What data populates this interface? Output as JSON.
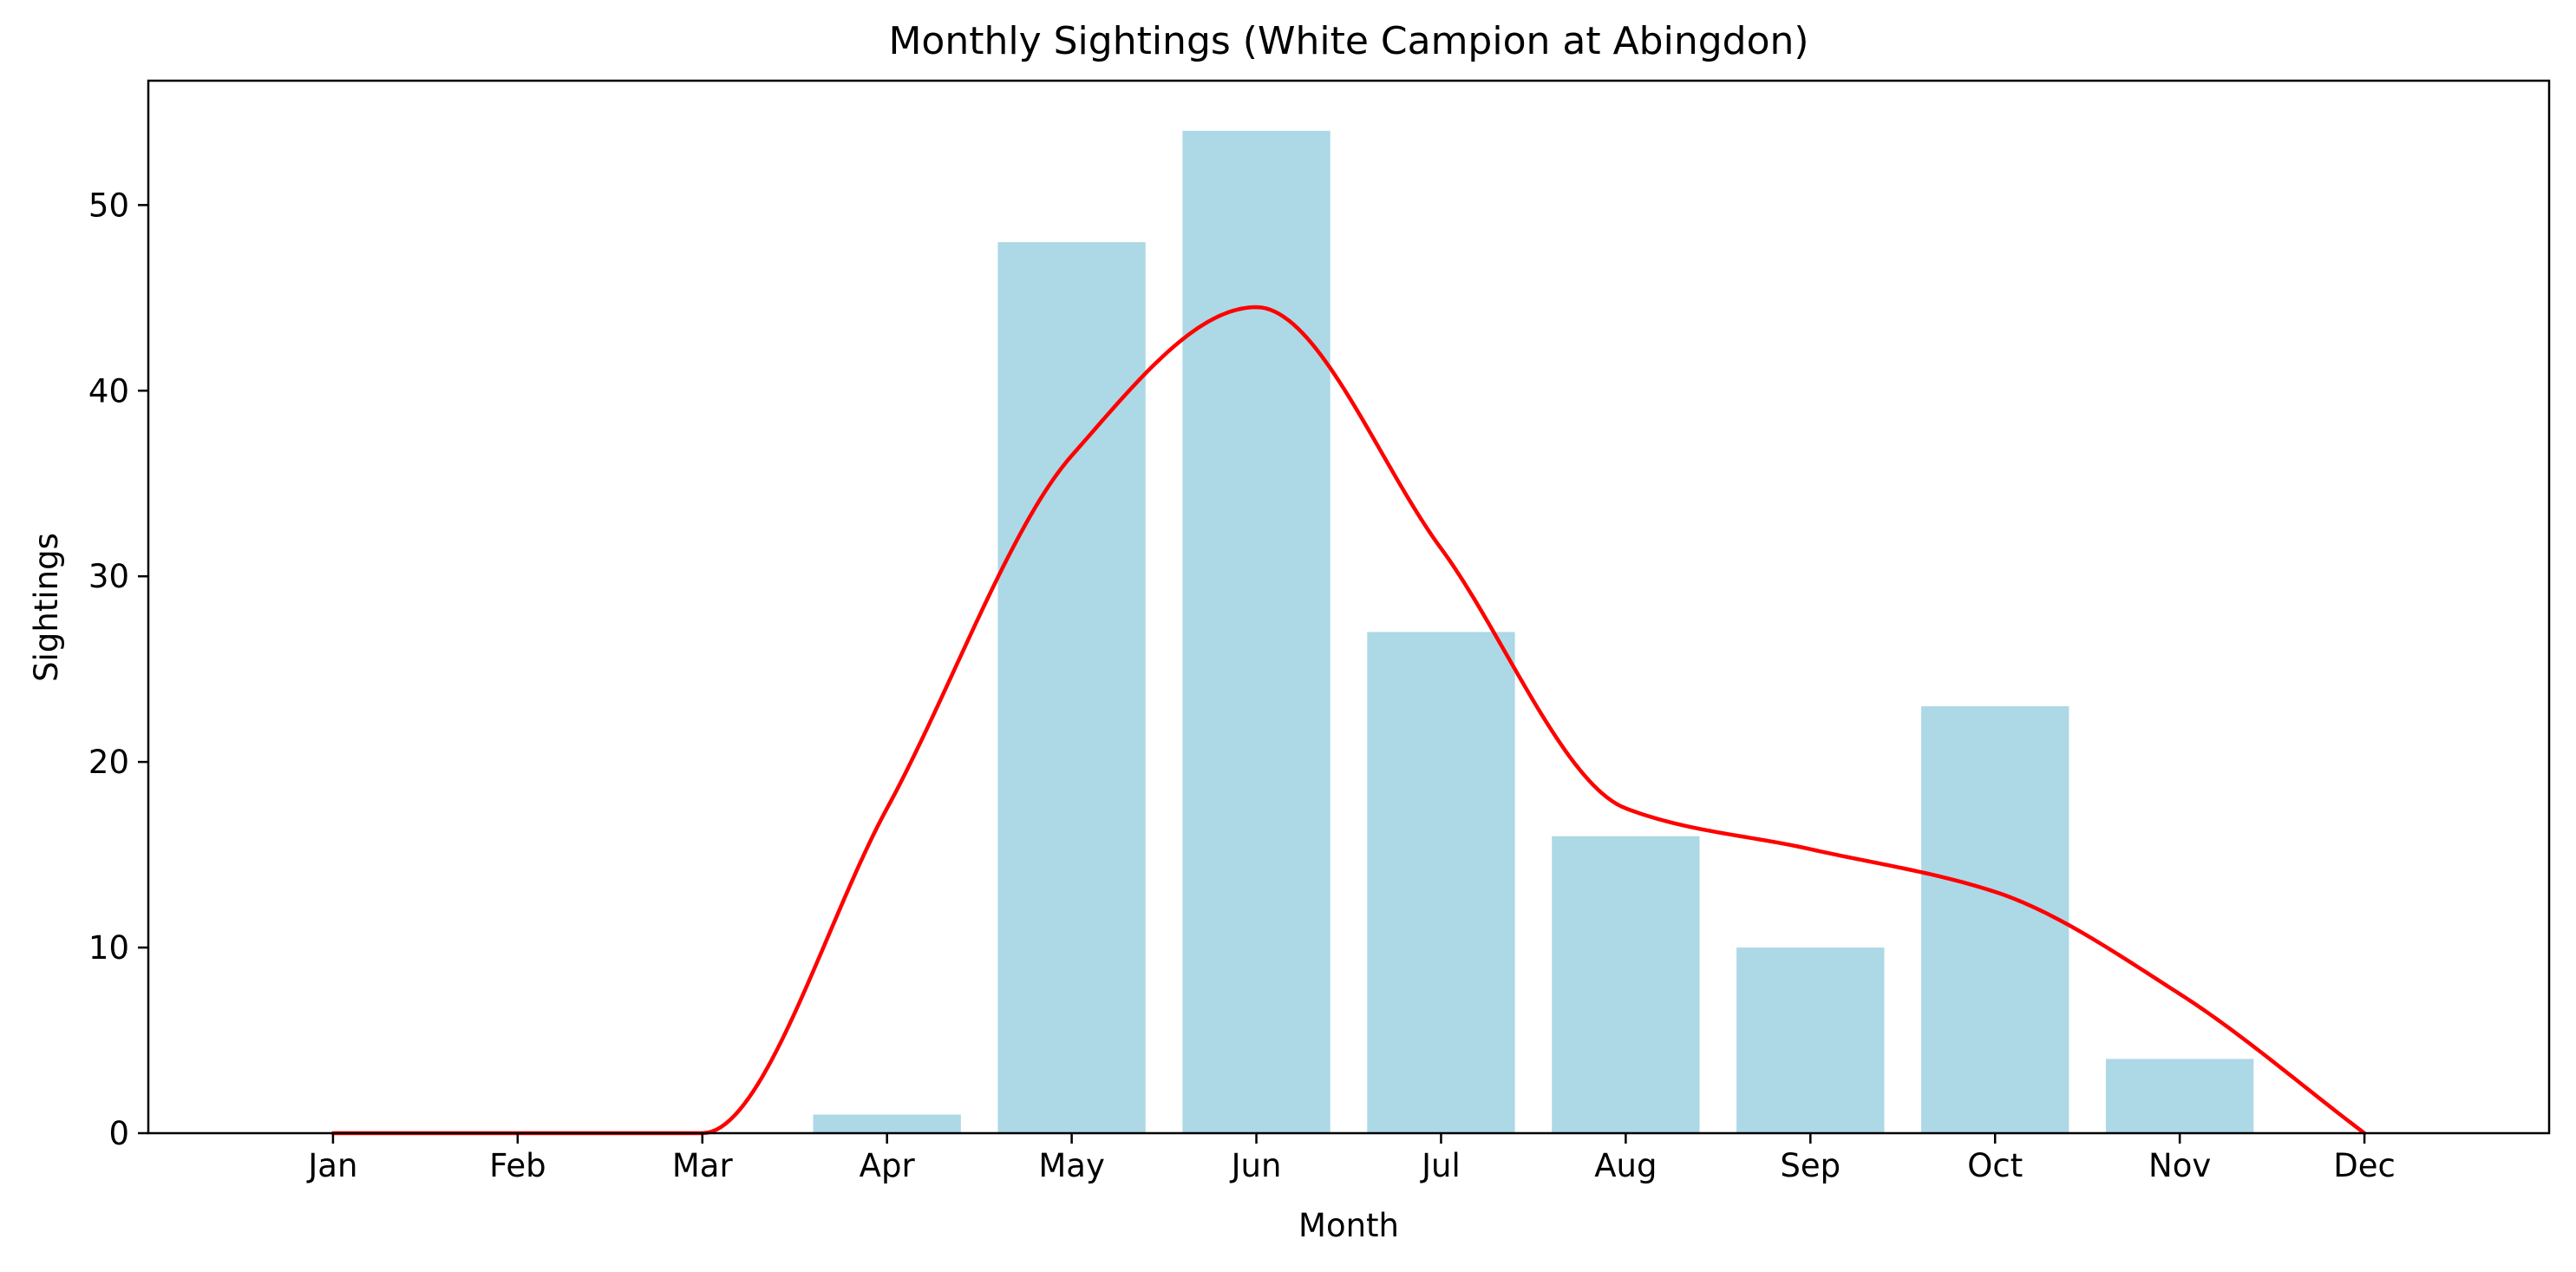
{
  "chart_data": {
    "type": "bar",
    "title": "Monthly Sightings (White Campion at Abingdon)",
    "xlabel": "Month",
    "ylabel": "Sightings",
    "categories": [
      "Jan",
      "Feb",
      "Mar",
      "Apr",
      "May",
      "Jun",
      "Jul",
      "Aug",
      "Sep",
      "Oct",
      "Nov",
      "Dec"
    ],
    "series": [
      {
        "type": "bar",
        "values": [
          0,
          0,
          0,
          1,
          48,
          54,
          27,
          16,
          10,
          23,
          4,
          0
        ],
        "color": "#add8e6"
      },
      {
        "type": "line",
        "values": [
          0,
          0,
          0,
          17.5,
          36.5,
          44.5,
          31.5,
          17.5,
          15.3,
          13.0,
          7.5,
          0
        ],
        "color": "#ff0000"
      }
    ],
    "xlim": [
      -1,
      12
    ],
    "ylim": [
      0,
      56.7
    ],
    "yticks": [
      0,
      10,
      20,
      30,
      40,
      50
    ],
    "grid": false,
    "legend": "none"
  }
}
